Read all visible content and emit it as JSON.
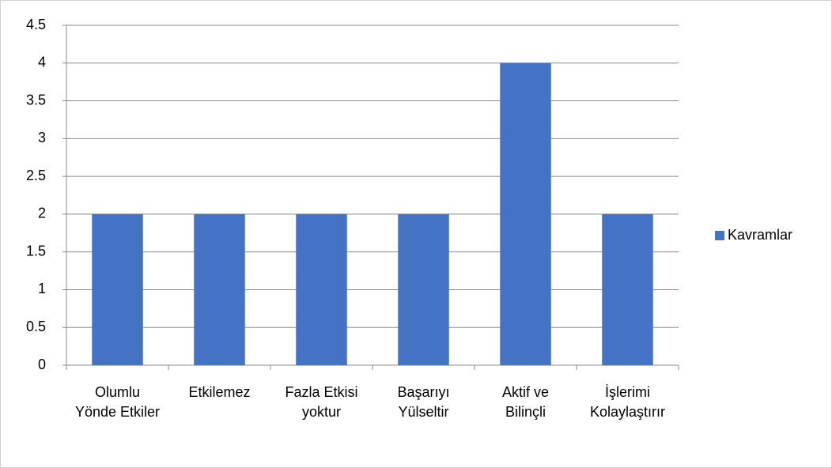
{
  "chart_data": {
    "type": "bar",
    "categories": [
      "Olumlu Yönde Etkiler",
      "Etkilemez",
      "Fazla Etkisi yoktur",
      "Başarıyı Yülseltir",
      "Aktif ve Bilinçli",
      "İşlerimi Kolaylaştırır"
    ],
    "series": [
      {
        "name": "Kavramlar",
        "color": "#4472c4",
        "values": [
          2,
          2,
          2,
          2,
          4,
          2
        ]
      }
    ],
    "ylim": [
      0,
      4.5
    ],
    "yticks": [
      0,
      0.5,
      1,
      1.5,
      2,
      2.5,
      3,
      3.5,
      4,
      4.5
    ],
    "grid": true,
    "legend": "right"
  }
}
